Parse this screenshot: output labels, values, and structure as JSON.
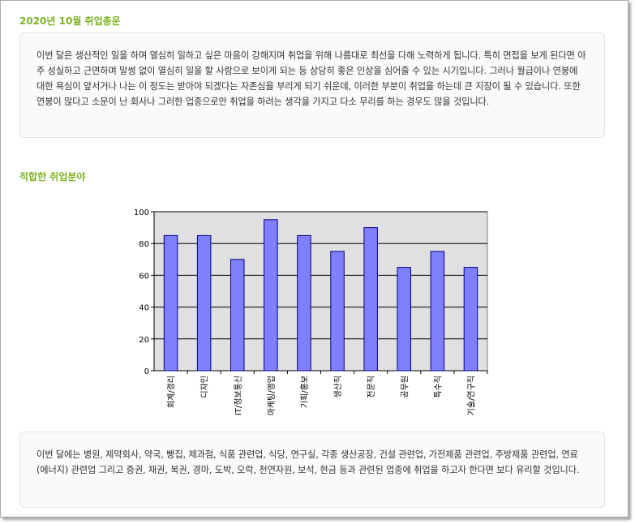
{
  "section1": {
    "title": "2020년 10월 취업총운",
    "body": "이번 달은 생산적인 일을 하며 열심히 일하고 싶은 마음이 강해지며 취업을 위해 나름대로 최선을 다해 노력하게 됩니다. 특히 면접을 보게 된다면 아주 성실하고 근면하며 말썽 없이 열심히 일을 할 사람으로 보이게 되는 등 상당히 좋은 인상을 심어줄 수 있는 시기입니다. 그러나 월급이나 연봉에 대한 욕심이 앞서거나 나는 이 정도는 받아야 되겠다는 자존심을 부리게 되기 쉬운데, 이러한 부분이 취업을 하는데 큰 지장이 될 수 있습니다. 또한 연봉이 많다고 소문이 난 회사나 그러한 업종으로만 취업을 하려는 생각을 가지고 다소 무리를 하는 경우도 많을 것입니다."
  },
  "section2": {
    "title": "적합한 취업분야",
    "body": "이번 달에는 병원, 제약회사, 약국, 빵집, 제과점, 식품 관련업, 식당, 연구실, 각종 생산공장, 건설 관련업, 가전제품 관련업, 주방제품 관련업, 연료(에너지) 관련업 그리고 증권, 채권, 복권, 경마, 도박, 오락, 천연자원, 보석, 현금 등과 관련된 업종에 취업을 하고자 한다면 보다 유리할 것입니다."
  },
  "chart_data": {
    "type": "bar",
    "categories": [
      "회계/경리",
      "디자인",
      "IT/정보통신",
      "마케팅/영업",
      "기획/홍보",
      "생산직",
      "전문직",
      "공무원",
      "특수직",
      "기술/연구직"
    ],
    "values": [
      85,
      85,
      70,
      95,
      85,
      75,
      90,
      65,
      75,
      65
    ],
    "ylim": [
      0,
      100
    ],
    "yticks": [
      0,
      20,
      40,
      60,
      80,
      100
    ],
    "grid": true,
    "colors": {
      "bar_fill": "#8080ff",
      "bar_stroke": "#000080",
      "plot_background": "#e0e0e0"
    }
  }
}
